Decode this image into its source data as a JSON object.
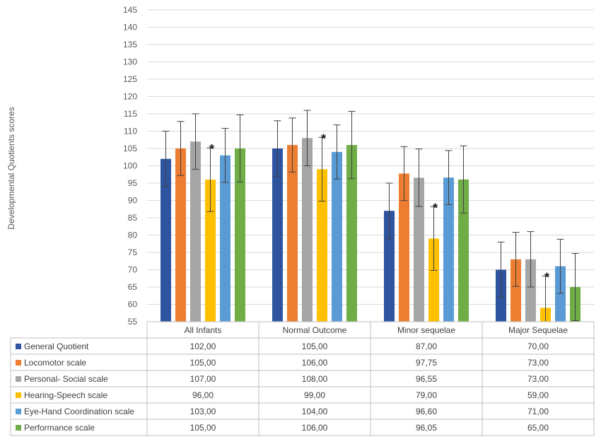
{
  "chart_data": {
    "type": "bar",
    "ylabel": "Developmental Quotients scores",
    "ylim": [
      55,
      145
    ],
    "ytick_step": 5,
    "grid": true,
    "legend": "data-table",
    "categories": [
      "All Infants",
      "Normal Outcome",
      "Minor sequelae",
      "Major Sequelae"
    ],
    "series": [
      {
        "name": "General Quotient",
        "color": "#2e54a0",
        "values": [
          102,
          105,
          87,
          70
        ],
        "labels": [
          "102,00",
          "105,00",
          "87,00",
          "70,00"
        ],
        "errors": [
          8,
          8,
          8,
          8
        ]
      },
      {
        "name": "Locomotor scale",
        "color": "#ed7d31",
        "values": [
          105,
          106,
          97.75,
          73
        ],
        "labels": [
          "105,00",
          "106,00",
          "97,75",
          "73,00"
        ],
        "errors": [
          7.8,
          7.8,
          7.8,
          7.8
        ]
      },
      {
        "name": "Personal- Social scale",
        "color": "#a5a5a5",
        "values": [
          107,
          108,
          96.55,
          73
        ],
        "labels": [
          "107,00",
          "108,00",
          "96,55",
          "73,00"
        ],
        "errors": [
          8,
          8,
          8.3,
          8
        ]
      },
      {
        "name": "Hearing-Speech scale",
        "color": "#ffc000",
        "values": [
          96,
          99,
          79,
          59
        ],
        "labels": [
          "96,00",
          "99,00",
          "79,00",
          "59,00"
        ],
        "errors": [
          9.2,
          9.2,
          9.2,
          9.2
        ]
      },
      {
        "name": "Eye-Hand Coordination scale",
        "color": "#5b9bd5",
        "values": [
          103,
          104,
          96.6,
          71
        ],
        "labels": [
          "103,00",
          "104,00",
          "96,60",
          "71,00"
        ],
        "errors": [
          7.8,
          7.8,
          7.8,
          7.8
        ]
      },
      {
        "name": "Performance scale",
        "color": "#70ad47",
        "values": [
          105,
          106,
          96.05,
          65
        ],
        "labels": [
          "105,00",
          "106,00",
          "96,05",
          "65,00"
        ],
        "errors": [
          9.7,
          9.7,
          9.7,
          9.7
        ]
      }
    ],
    "annotations": [
      {
        "text": "*",
        "category": "All Infants",
        "series": "Hearing-Speech scale"
      },
      {
        "text": "*",
        "category": "Normal Outcome",
        "series": "Hearing-Speech scale"
      },
      {
        "text": "*",
        "category": "Minor sequelae",
        "series": "Hearing-Speech scale"
      },
      {
        "text": "*",
        "category": "Major Sequelae",
        "series": "Hearing-Speech scale"
      }
    ]
  }
}
